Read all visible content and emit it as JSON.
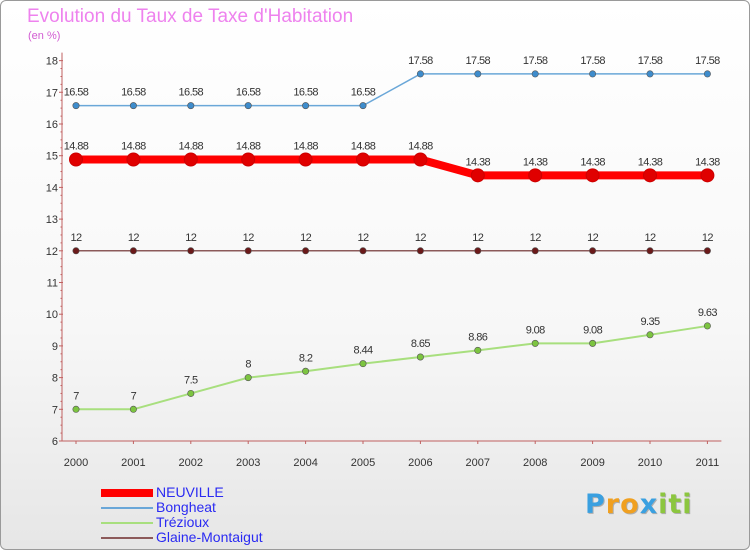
{
  "title": "Evolution du Taux de Taxe d'Habitation",
  "subtitle": "(en %)",
  "logo": {
    "text": "Proxiti",
    "letters": [
      {
        "ch": "P",
        "color": "#3aa0e0"
      },
      {
        "ch": "r",
        "color": "#f0a020"
      },
      {
        "ch": "o",
        "color": "#f0a020"
      },
      {
        "ch": "x",
        "color": "#3aa0e0"
      },
      {
        "ch": "i",
        "color": "#8cc63f"
      },
      {
        "ch": "t",
        "color": "#8cc63f"
      },
      {
        "ch": "i",
        "color": "#8cc63f"
      }
    ]
  },
  "legend": [
    {
      "label": "NEUVILLE",
      "color": "#ff0000",
      "thick": true
    },
    {
      "label": "Bongheat",
      "color": "#6aa7d8",
      "thick": false
    },
    {
      "label": "Trézioux",
      "color": "#a8df7e",
      "thick": false
    },
    {
      "label": "Glaine-Montaigut",
      "color": "#8c5a5a",
      "thick": false
    }
  ],
  "chart_data": {
    "type": "line",
    "x": [
      "2000",
      "2001",
      "2002",
      "2003",
      "2004",
      "2005",
      "2006",
      "2007",
      "2008",
      "2009",
      "2010",
      "2011"
    ],
    "ylim": [
      6,
      18
    ],
    "yticks": [
      6,
      7,
      8,
      9,
      10,
      11,
      12,
      13,
      14,
      15,
      16,
      17,
      18
    ],
    "grid": false,
    "series": [
      {
        "name": "Glaine-Montaigut",
        "color": "#8c5a5a",
        "marker": "#6b1a1a",
        "width": 1.5,
        "values": [
          12,
          12,
          12,
          12,
          12,
          12,
          12,
          12,
          12,
          12,
          12,
          12
        ],
        "labels": [
          "12",
          "12",
          "12",
          "12",
          "12",
          "12",
          "12",
          "12",
          "12",
          "12",
          "12",
          "12"
        ]
      },
      {
        "name": "Trézioux",
        "color": "#a8df7e",
        "marker": "#7cc440",
        "width": 2,
        "values": [
          7,
          7,
          7.5,
          8,
          8.2,
          8.44,
          8.65,
          8.86,
          9.08,
          9.08,
          9.35,
          9.63
        ],
        "labels": [
          "7",
          "7",
          "7.5",
          "8",
          "8.2",
          "8.44",
          "8.65",
          "8.86",
          "9.08",
          "9.08",
          "9.35",
          "9.63"
        ]
      },
      {
        "name": "Bongheat",
        "color": "#6aa7d8",
        "marker": "#3e8ccc",
        "width": 1.5,
        "values": [
          16.58,
          16.58,
          16.58,
          16.58,
          16.58,
          16.58,
          17.58,
          17.58,
          17.58,
          17.58,
          17.58,
          17.58
        ],
        "labels": [
          "16.58",
          "16.58",
          "16.58",
          "16.58",
          "16.58",
          "16.58",
          "17.58",
          "17.58",
          "17.58",
          "17.58",
          "17.58",
          "17.58"
        ]
      },
      {
        "name": "NEUVILLE",
        "color": "#ff0000",
        "marker": "#e00000",
        "width": 8,
        "values": [
          14.88,
          14.88,
          14.88,
          14.88,
          14.88,
          14.88,
          14.88,
          14.38,
          14.38,
          14.38,
          14.38,
          14.38
        ],
        "labels": [
          "14.88",
          "14.88",
          "14.88",
          "14.88",
          "14.88",
          "14.88",
          "14.88",
          "14.38",
          "14.38",
          "14.38",
          "14.38",
          "14.38"
        ]
      }
    ]
  }
}
